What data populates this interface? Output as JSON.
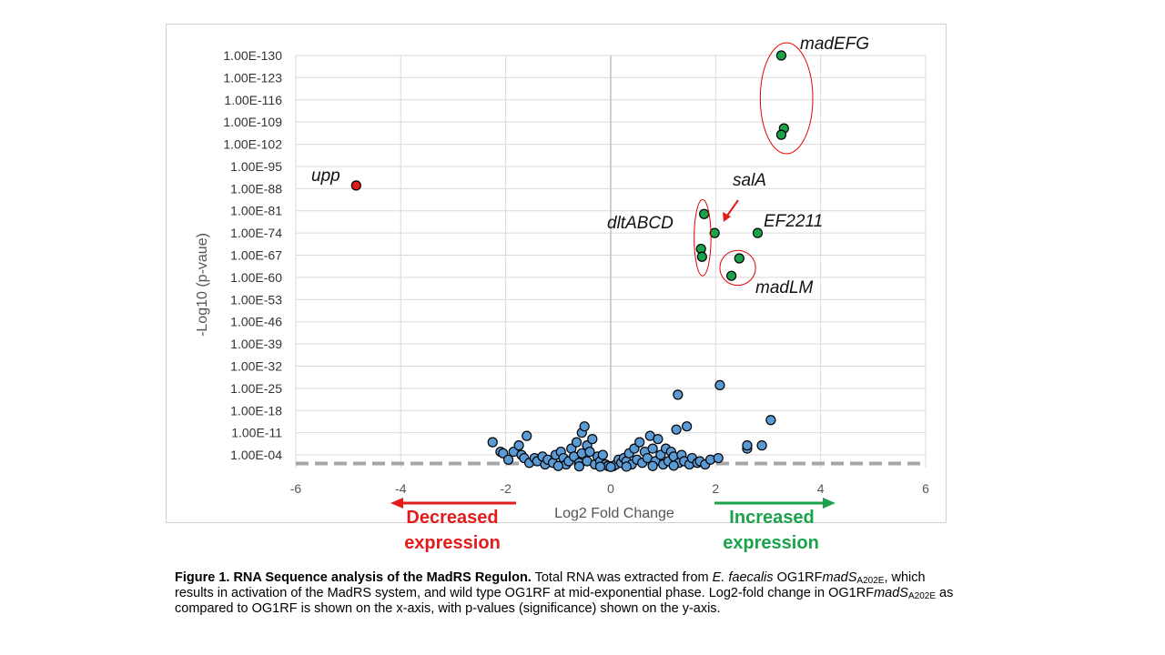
{
  "chart_data": {
    "type": "scatter",
    "xlabel": "Log2 Fold Change",
    "ylabel": "-Log10 (p-vaue)",
    "xlim": [
      -6,
      6
    ],
    "x_ticks": [
      "-6",
      "-4",
      "-2",
      "0",
      "2",
      "4",
      "6"
    ],
    "y_ticks": [
      "1.00E-04",
      "1.00E-11",
      "1.00E-18",
      "1.00E-25",
      "1.00E-32",
      "1.00E-39",
      "1.00E-46",
      "1.00E-53",
      "1.00E-60",
      "1.00E-67",
      "1.00E-74",
      "1.00E-81",
      "1.00E-88",
      "1.00E-95",
      "1.00E-102",
      "1.00E-109",
      "1.00E-116",
      "1.00E-123",
      "1.00E-130"
    ],
    "ylim": [
      0,
      130
    ],
    "grid": true,
    "threshold_line_y": 1.3,
    "colors": {
      "decreased": "#e21b1b",
      "increased": "#1aa34a",
      "nonsig": "#5b9bd5",
      "marker_edge": "#000000",
      "grid": "#d9d9d9",
      "threshold": "#a6a6a6",
      "ellipse": "#e00000"
    },
    "series": [
      {
        "name": "decreased",
        "points": [
          [
            -4.85,
            89
          ]
        ]
      },
      {
        "name": "increased",
        "points": [
          [
            3.25,
            130
          ],
          [
            3.3,
            107
          ],
          [
            3.25,
            105
          ],
          [
            1.78,
            80
          ],
          [
            1.98,
            74
          ],
          [
            2.8,
            74
          ],
          [
            1.72,
            69
          ],
          [
            1.74,
            66.5
          ],
          [
            2.45,
            66
          ],
          [
            2.3,
            60.5
          ]
        ]
      },
      {
        "name": "nonsig",
        "points": [
          [
            -2.25,
            8
          ],
          [
            -2.1,
            5
          ],
          [
            -2.05,
            4.5
          ],
          [
            -1.95,
            2.5
          ],
          [
            -1.85,
            5
          ],
          [
            -1.75,
            7
          ],
          [
            -1.7,
            4
          ],
          [
            -1.65,
            3
          ],
          [
            -1.6,
            10
          ],
          [
            -1.55,
            1.5
          ],
          [
            -1.45,
            3
          ],
          [
            -1.4,
            2
          ],
          [
            -1.3,
            3.5
          ],
          [
            -1.25,
            1
          ],
          [
            -1.2,
            2.5
          ],
          [
            -1.1,
            1.5
          ],
          [
            -1.05,
            4
          ],
          [
            -0.95,
            5
          ],
          [
            -0.9,
            3
          ],
          [
            -0.85,
            1
          ],
          [
            -0.8,
            2
          ],
          [
            -0.75,
            6
          ],
          [
            -0.7,
            3.5
          ],
          [
            -0.65,
            8
          ],
          [
            -0.6,
            1.5
          ],
          [
            -0.55,
            11
          ],
          [
            -0.55,
            4.5
          ],
          [
            -0.5,
            13
          ],
          [
            -0.45,
            2
          ],
          [
            -0.45,
            7
          ],
          [
            -0.4,
            5
          ],
          [
            -0.35,
            9
          ],
          [
            -0.3,
            1
          ],
          [
            -0.25,
            3.5
          ],
          [
            -0.2,
            2
          ],
          [
            -0.15,
            4
          ],
          [
            -0.1,
            1
          ],
          [
            -0.05,
            0.5
          ],
          [
            0.05,
            0.5
          ],
          [
            0.1,
            1
          ],
          [
            0.15,
            2.5
          ],
          [
            0.2,
            1.5
          ],
          [
            0.25,
            3
          ],
          [
            0.3,
            2
          ],
          [
            0.35,
            4.5
          ],
          [
            0.4,
            1
          ],
          [
            0.45,
            6
          ],
          [
            0.5,
            2.5
          ],
          [
            0.55,
            8
          ],
          [
            0.6,
            1.5
          ],
          [
            0.65,
            5
          ],
          [
            0.7,
            3
          ],
          [
            0.75,
            10
          ],
          [
            0.8,
            6
          ],
          [
            0.85,
            2
          ],
          [
            0.9,
            9
          ],
          [
            0.95,
            4
          ],
          [
            1.0,
            1
          ],
          [
            1.05,
            6
          ],
          [
            1.1,
            2
          ],
          [
            1.15,
            5
          ],
          [
            1.2,
            3.5
          ],
          [
            1.25,
            12
          ],
          [
            1.3,
            1.5
          ],
          [
            1.35,
            4
          ],
          [
            1.4,
            2
          ],
          [
            1.45,
            13
          ],
          [
            1.5,
            1
          ],
          [
            1.55,
            3
          ],
          [
            1.65,
            1.5
          ],
          [
            1.7,
            2
          ],
          [
            1.8,
            1
          ],
          [
            1.9,
            2.5
          ],
          [
            2.05,
            3
          ],
          [
            1.28,
            23
          ],
          [
            2.08,
            26
          ],
          [
            2.6,
            6
          ],
          [
            2.6,
            7
          ],
          [
            2.88,
            7
          ],
          [
            3.05,
            15
          ],
          [
            -0.2,
            0.3
          ],
          [
            0.3,
            0.3
          ],
          [
            -0.6,
            0.4
          ],
          [
            0.8,
            0.5
          ],
          [
            -1.0,
            0.5
          ],
          [
            1.2,
            0.6
          ],
          [
            0.0,
            0.2
          ]
        ]
      }
    ],
    "labels": {
      "madEFG": "madEFG",
      "upp": "upp",
      "salA": "salA",
      "dltABCD": "dltABCD",
      "EF2211": "EF2211",
      "madLM": "madLM"
    },
    "expression": {
      "decreased_line1": "Decreased",
      "decreased_line2": "expression",
      "increased_line1": "Increased",
      "increased_line2": "expression"
    }
  },
  "caption": {
    "bold": "Figure 1. RNA Sequence analysis of the MadRS Regulon.",
    "t1": " Total RNA was extracted from ",
    "species": "E. faecalis",
    "t2": "OG1RF",
    "gene1": "madS",
    "sub1": "A202E",
    "t3": ", which results in activation of the MadRS system, and wild type OG1RF at mid-exponential phase. Log2-fold change in OG1RF",
    "gene2": "madS",
    "sub2": "A202E",
    "t4": " as compared to OG1RF is shown on the x-axis, with p-values (significance) shown on the y-axis."
  }
}
